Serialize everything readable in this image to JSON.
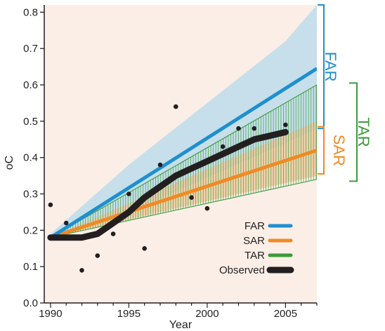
{
  "chart_data": {
    "type": "line",
    "xlabel": "Year",
    "ylabel": "oC",
    "xlim": [
      1989.6,
      2007
    ],
    "ylim": [
      0,
      0.82
    ],
    "x_ticks": [
      1990,
      1995,
      2000,
      2005
    ],
    "x_tick_labels": [
      "1990",
      "1995",
      "2000",
      "2005"
    ],
    "y_ticks": [
      0,
      0.1,
      0.2,
      0.3,
      0.4,
      0.5,
      0.6,
      0.7,
      0.8
    ],
    "y_tick_labels": [
      "0.0",
      "0.1",
      "0.2",
      "0.3",
      "0.4",
      "0.5",
      "0.6",
      "0.7",
      "0.8"
    ],
    "grid": false,
    "legend_position": "bottom-right",
    "series": [
      {
        "name": "FAR",
        "color": "#1f8fcf",
        "band_color": "#bcdcea",
        "x": [
          1990,
          2007
        ],
        "values": [
          0.18,
          0.645
        ],
        "band_upper": [
          [
            1990,
            0.19
          ],
          [
            1995,
            0.38
          ],
          [
            2000,
            0.55
          ],
          [
            2005,
            0.72
          ],
          [
            2007,
            0.82
          ]
        ],
        "band_lower": [
          [
            1990,
            0.18
          ],
          [
            1995,
            0.25
          ],
          [
            2000,
            0.345
          ],
          [
            2005,
            0.44
          ],
          [
            2007,
            0.48
          ]
        ]
      },
      {
        "name": "SAR",
        "color": "#f08a24",
        "band_color": "#f3c79a",
        "x": [
          1990,
          2007
        ],
        "values": [
          0.18,
          0.42
        ],
        "band_upper": [
          [
            1990,
            0.18
          ],
          [
            2007,
            0.5
          ]
        ],
        "band_lower": [
          [
            1990,
            0.18
          ],
          [
            2007,
            0.35
          ]
        ]
      },
      {
        "name": "TAR",
        "color": "#3c9a3c",
        "hatched": true,
        "band_upper": [
          [
            1990,
            0.18
          ],
          [
            2007,
            0.6
          ]
        ],
        "band_lower": [
          [
            1990,
            0.18
          ],
          [
            2007,
            0.34
          ]
        ]
      },
      {
        "name": "Observed",
        "color": "#231f20",
        "x": [
          1990,
          1991,
          1992,
          1993,
          1994,
          1995,
          1996,
          1997,
          1998,
          1999,
          2000,
          2001,
          2002,
          2003,
          2004,
          2005
        ],
        "values": [
          0.18,
          0.18,
          0.18,
          0.19,
          0.22,
          0.25,
          0.29,
          0.32,
          0.35,
          0.37,
          0.39,
          0.41,
          0.43,
          0.45,
          0.46,
          0.47
        ]
      }
    ],
    "annual_points": {
      "x": [
        1990,
        1991,
        1992,
        1993,
        1994,
        1995,
        1996,
        1997,
        1998,
        1999,
        2000,
        2001,
        2002,
        2003,
        2005
      ],
      "values": [
        0.27,
        0.22,
        0.09,
        0.13,
        0.19,
        0.3,
        0.15,
        0.38,
        0.54,
        0.29,
        0.26,
        0.43,
        0.48,
        0.48,
        0.49
      ]
    },
    "brackets": [
      {
        "label": "FAR",
        "color": "#1f8fcf",
        "range": [
          0.48,
          0.82
        ]
      },
      {
        "label": "SAR",
        "color": "#f08a24",
        "range": [
          0.355,
          0.485
        ]
      },
      {
        "label": "TAR",
        "color": "#3c9a3c",
        "range": [
          0.335,
          0.605
        ]
      }
    ],
    "legend": [
      "FAR",
      "SAR",
      "TAR",
      "Observed"
    ]
  }
}
